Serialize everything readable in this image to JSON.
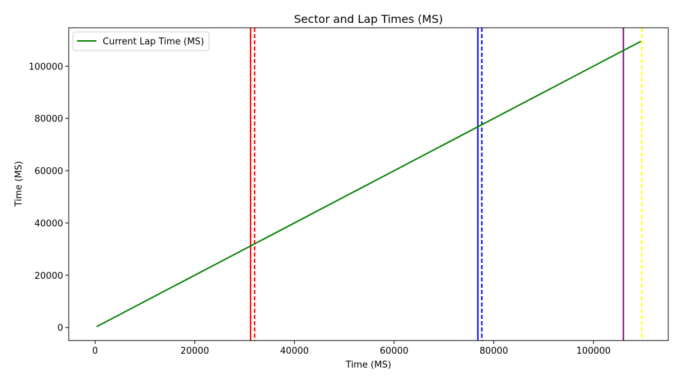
{
  "chart_data": {
    "type": "line",
    "title": "Sector and Lap Times (MS)",
    "xlabel": "Time (MS)",
    "ylabel": "Time (MS)",
    "xlim": [
      -5300,
      115000
    ],
    "ylim": [
      -5000,
      114700
    ],
    "xticks": [
      0,
      20000,
      40000,
      60000,
      80000,
      100000
    ],
    "yticks": [
      0,
      20000,
      40000,
      60000,
      80000,
      100000
    ],
    "grid": false,
    "legend_position": "top-left",
    "series": [
      {
        "name": "Current Lap Time (MS)",
        "color": "#008000",
        "x": [
          300,
          109500
        ],
        "y": [
          300,
          109500
        ]
      }
    ],
    "vertical_lines": [
      {
        "x": 31200,
        "color": "#ff0000",
        "style": "solid"
      },
      {
        "x": 32000,
        "color": "#ff0000",
        "style": "dashed"
      },
      {
        "x": 76800,
        "color": "#0000ff",
        "style": "solid"
      },
      {
        "x": 77600,
        "color": "#0000ff",
        "style": "dashed"
      },
      {
        "x": 106000,
        "color": "#800080",
        "style": "solid"
      },
      {
        "x": 109700,
        "color": "#ffff00",
        "style": "dashed"
      }
    ]
  }
}
